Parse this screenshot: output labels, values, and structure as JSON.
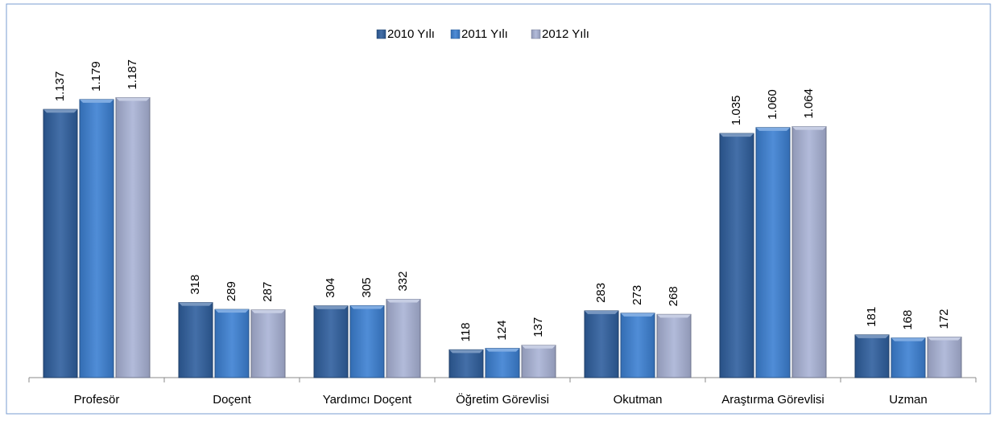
{
  "chart_data": {
    "type": "bar",
    "categories": [
      "Profesör",
      "Doçent",
      "Yardımcı Doçent",
      "Öğretim Görevlisi",
      "Okutman",
      "Araştırma Görevlisi",
      "Uzman"
    ],
    "series": [
      {
        "name": "2010 Yılı",
        "color": "#2f5f9e",
        "values": [
          1137,
          318,
          304,
          118,
          283,
          1035,
          181
        ],
        "value_labels": [
          "1.137",
          "318",
          "304",
          "118",
          "283",
          "1.035",
          "181"
        ]
      },
      {
        "name": "2011 Yılı",
        "color": "#3c80d2",
        "values": [
          1179,
          289,
          305,
          124,
          273,
          1060,
          168
        ],
        "value_labels": [
          "1.179",
          "289",
          "305",
          "124",
          "273",
          "1.060",
          "168"
        ]
      },
      {
        "name": "2012 Yılı",
        "color": "#a9b3d6",
        "values": [
          1187,
          287,
          332,
          137,
          268,
          1064,
          172
        ],
        "value_labels": [
          "1.187",
          "287",
          "332",
          "137",
          "268",
          "1.064",
          "172"
        ]
      }
    ],
    "ylim": [
      0,
      1400
    ],
    "legend": "top"
  }
}
